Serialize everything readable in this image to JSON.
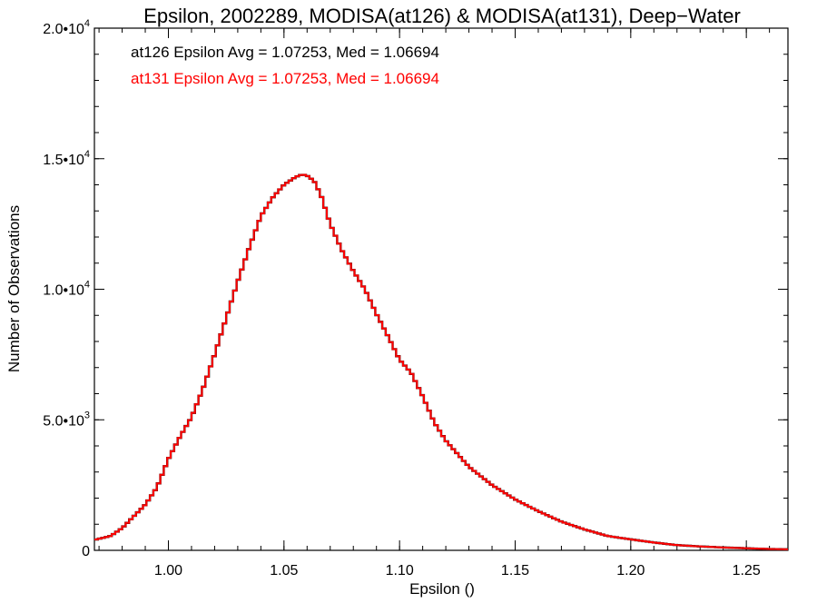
{
  "chart_data": {
    "type": "line",
    "title": "Epsilon, 2002289, MODISA(at126) & MODISA(at131), Deep−Water",
    "xlabel": "Epsilon ()",
    "ylabel": "Number of Observations",
    "xlim": [
      0.968,
      1.268
    ],
    "ylim": [
      0,
      20000
    ],
    "x_ticks": [
      {
        "value": 1.0,
        "label": "1.00"
      },
      {
        "value": 1.05,
        "label": "1.05"
      },
      {
        "value": 1.1,
        "label": "1.10"
      },
      {
        "value": 1.15,
        "label": "1.15"
      },
      {
        "value": 1.2,
        "label": "1.20"
      },
      {
        "value": 1.25,
        "label": "1.25"
      }
    ],
    "y_ticks": [
      {
        "value": 0,
        "mantissa": "0",
        "exponent": ""
      },
      {
        "value": 5000,
        "mantissa": "5.0•10",
        "exponent": "3"
      },
      {
        "value": 10000,
        "mantissa": "1.0•10",
        "exponent": "4"
      },
      {
        "value": 15000,
        "mantissa": "1.5•10",
        "exponent": "4"
      },
      {
        "value": 20000,
        "mantissa": "2.0•10",
        "exponent": "4"
      }
    ],
    "legend": [
      {
        "text": "at126 Epsilon Avg = 1.07253, Med = 1.06694",
        "color": "#000000"
      },
      {
        "text": "at131 Epsilon Avg = 1.07253, Med = 1.06694",
        "color": "#ff0000"
      }
    ],
    "legend_position": "top-left",
    "series": [
      {
        "name": "at126",
        "color": "#000000",
        "x": [
          0.968,
          0.975,
          0.98,
          0.985,
          0.99,
          0.995,
          1.0,
          1.005,
          1.01,
          1.015,
          1.02,
          1.025,
          1.03,
          1.035,
          1.04,
          1.045,
          1.05,
          1.055,
          1.058,
          1.06,
          1.063,
          1.066,
          1.07,
          1.075,
          1.08,
          1.085,
          1.09,
          1.095,
          1.1,
          1.105,
          1.11,
          1.115,
          1.12,
          1.125,
          1.13,
          1.135,
          1.14,
          1.15,
          1.16,
          1.17,
          1.18,
          1.19,
          1.2,
          1.21,
          1.22,
          1.23,
          1.24,
          1.25,
          1.26,
          1.268
        ],
        "y": [
          400,
          550,
          850,
          1300,
          1750,
          2400,
          3500,
          4350,
          5100,
          6200,
          7500,
          8900,
          10300,
          11600,
          12800,
          13500,
          14000,
          14300,
          14400,
          14350,
          14150,
          13600,
          12500,
          11500,
          10700,
          10000,
          9050,
          8200,
          7300,
          6800,
          5900,
          4900,
          4200,
          3700,
          3200,
          2850,
          2500,
          1950,
          1500,
          1100,
          800,
          550,
          420,
          300,
          200,
          150,
          110,
          80,
          50,
          40
        ]
      },
      {
        "name": "at131",
        "color": "#ff0000",
        "x": [
          0.968,
          0.975,
          0.98,
          0.985,
          0.99,
          0.995,
          1.0,
          1.005,
          1.01,
          1.015,
          1.02,
          1.025,
          1.03,
          1.035,
          1.04,
          1.045,
          1.05,
          1.055,
          1.058,
          1.06,
          1.063,
          1.066,
          1.07,
          1.075,
          1.08,
          1.085,
          1.09,
          1.095,
          1.1,
          1.105,
          1.11,
          1.115,
          1.12,
          1.125,
          1.13,
          1.135,
          1.14,
          1.15,
          1.16,
          1.17,
          1.18,
          1.19,
          1.2,
          1.21,
          1.22,
          1.23,
          1.24,
          1.25,
          1.26,
          1.268
        ],
        "y": [
          400,
          550,
          850,
          1300,
          1750,
          2400,
          3500,
          4350,
          5100,
          6200,
          7500,
          8900,
          10300,
          11600,
          12800,
          13500,
          14000,
          14300,
          14400,
          14350,
          14150,
          13600,
          12500,
          11500,
          10700,
          10000,
          9050,
          8200,
          7300,
          6800,
          5900,
          4900,
          4200,
          3700,
          3200,
          2850,
          2500,
          1950,
          1500,
          1100,
          800,
          550,
          420,
          300,
          200,
          150,
          110,
          80,
          50,
          40
        ]
      }
    ]
  }
}
